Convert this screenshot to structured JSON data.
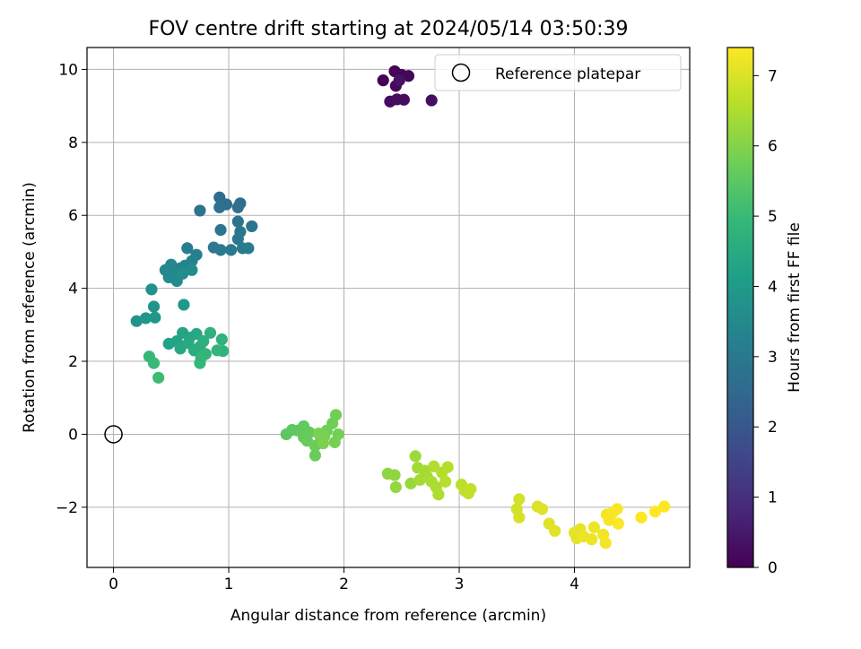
{
  "chart_data": {
    "type": "scatter",
    "title": "FOV centre drift starting at 2024/05/14 03:50:39",
    "xlabel": "Angular distance from reference (arcmin)",
    "ylabel": "Rotation from reference (arcmin)",
    "xlim": [
      -0.23,
      5.0
    ],
    "ylim": [
      -3.65,
      10.6
    ],
    "xticks": [
      0,
      1,
      2,
      3,
      4
    ],
    "xtick_labels": [
      "0",
      "1",
      "2",
      "3",
      "4"
    ],
    "yticks": [
      -2,
      0,
      2,
      4,
      6,
      8,
      10
    ],
    "ytick_labels": [
      "−2",
      "0",
      "2",
      "4",
      "6",
      "8",
      "10"
    ],
    "grid": true,
    "legend": {
      "position": "top-right",
      "entries": [
        "Reference platepar"
      ]
    },
    "colorbar": {
      "label": "Hours from first FF file",
      "colormap": "viridis",
      "range": [
        0,
        7.4
      ],
      "ticks": [
        0,
        1,
        2,
        3,
        4,
        5,
        6,
        7
      ],
      "tick_labels": [
        "0",
        "1",
        "2",
        "3",
        "4",
        "5",
        "6",
        "7"
      ]
    },
    "reference_point": {
      "x": 0,
      "y": 0,
      "label": "Reference platepar"
    },
    "series": [
      {
        "points": [
          [
            2.34,
            9.7,
            0.0
          ],
          [
            2.44,
            9.95,
            0.05
          ],
          [
            2.5,
            9.85,
            0.1
          ],
          [
            2.56,
            9.82,
            0.12
          ],
          [
            2.45,
            9.55,
            0.15
          ],
          [
            2.4,
            9.12,
            0.2
          ],
          [
            2.46,
            9.18,
            0.22
          ],
          [
            2.52,
            9.17,
            0.25
          ],
          [
            2.76,
            9.15,
            0.3
          ],
          [
            2.48,
            9.7,
            0.35
          ],
          [
            0.92,
            6.49,
            2.6
          ],
          [
            0.98,
            6.3,
            2.65
          ],
          [
            1.1,
            6.33,
            2.7
          ],
          [
            1.08,
            6.22,
            2.72
          ],
          [
            0.92,
            6.22,
            2.75
          ],
          [
            0.75,
            6.13,
            2.8
          ],
          [
            1.08,
            5.83,
            2.85
          ],
          [
            1.2,
            5.7,
            2.88
          ],
          [
            0.93,
            5.6,
            2.9
          ],
          [
            1.1,
            5.55,
            2.92
          ],
          [
            1.08,
            5.35,
            2.95
          ],
          [
            0.87,
            5.12,
            3.0
          ],
          [
            0.93,
            5.05,
            3.02
          ],
          [
            1.02,
            5.05,
            3.05
          ],
          [
            1.12,
            5.1,
            3.08
          ],
          [
            1.17,
            5.1,
            3.1
          ],
          [
            0.64,
            5.1,
            3.15
          ],
          [
            0.72,
            4.92,
            3.2
          ],
          [
            0.68,
            4.75,
            3.25
          ],
          [
            0.62,
            4.62,
            3.3
          ],
          [
            0.58,
            4.55,
            3.35
          ],
          [
            0.5,
            4.65,
            3.4
          ],
          [
            0.45,
            4.5,
            3.45
          ],
          [
            0.52,
            4.4,
            3.5
          ],
          [
            0.48,
            4.3,
            3.52
          ],
          [
            0.55,
            4.2,
            3.55
          ],
          [
            0.68,
            4.5,
            3.6
          ],
          [
            0.6,
            4.4,
            3.62
          ],
          [
            0.33,
            3.97,
            3.7
          ],
          [
            0.2,
            3.1,
            3.8
          ],
          [
            0.35,
            3.5,
            3.85
          ],
          [
            0.28,
            3.18,
            3.9
          ],
          [
            0.36,
            3.2,
            3.92
          ],
          [
            0.61,
            3.55,
            3.95
          ],
          [
            0.48,
            2.48,
            4.2
          ],
          [
            0.55,
            2.55,
            4.25
          ],
          [
            0.6,
            2.78,
            4.3
          ],
          [
            0.66,
            2.65,
            4.35
          ],
          [
            0.72,
            2.75,
            4.4
          ],
          [
            0.58,
            2.35,
            4.45
          ],
          [
            0.65,
            2.5,
            4.5
          ],
          [
            0.7,
            2.3,
            4.55
          ],
          [
            0.75,
            2.4,
            4.6
          ],
          [
            0.78,
            2.55,
            4.65
          ],
          [
            0.84,
            2.78,
            4.7
          ],
          [
            0.94,
            2.6,
            4.75
          ],
          [
            0.95,
            2.28,
            4.8
          ],
          [
            0.9,
            2.3,
            4.82
          ],
          [
            0.8,
            2.2,
            4.85
          ],
          [
            0.76,
            2.1,
            4.88
          ],
          [
            0.75,
            1.95,
            4.9
          ],
          [
            0.31,
            2.13,
            4.95
          ],
          [
            0.35,
            1.95,
            5.0
          ],
          [
            0.39,
            1.55,
            5.05
          ],
          [
            1.5,
            0.0,
            5.5
          ],
          [
            1.55,
            0.12,
            5.52
          ],
          [
            1.6,
            0.1,
            5.55
          ],
          [
            1.65,
            0.22,
            5.58
          ],
          [
            1.7,
            0.05,
            5.6
          ],
          [
            1.65,
            -0.08,
            5.62
          ],
          [
            1.68,
            -0.18,
            5.65
          ],
          [
            1.75,
            -0.32,
            5.68
          ],
          [
            1.75,
            -0.58,
            5.7
          ],
          [
            1.8,
            -0.15,
            5.72
          ],
          [
            1.85,
            0.1,
            5.75
          ],
          [
            1.9,
            0.3,
            5.78
          ],
          [
            1.93,
            0.53,
            5.8
          ],
          [
            1.95,
            0.0,
            5.82
          ],
          [
            1.92,
            -0.22,
            5.85
          ],
          [
            1.83,
            -0.05,
            5.88
          ],
          [
            1.78,
            0.02,
            5.9
          ],
          [
            1.82,
            -0.25,
            5.92
          ],
          [
            2.38,
            -1.08,
            6.1
          ],
          [
            2.44,
            -1.12,
            6.15
          ],
          [
            2.45,
            -1.45,
            6.2
          ],
          [
            2.58,
            -1.35,
            6.25
          ],
          [
            2.62,
            -0.6,
            6.3
          ],
          [
            2.64,
            -0.92,
            6.35
          ],
          [
            2.7,
            -1.0,
            6.38
          ],
          [
            2.66,
            -1.25,
            6.4
          ],
          [
            2.72,
            -1.15,
            6.42
          ],
          [
            2.76,
            -1.3,
            6.45
          ],
          [
            2.8,
            -1.45,
            6.48
          ],
          [
            2.82,
            -1.65,
            6.5
          ],
          [
            2.78,
            -0.88,
            6.52
          ],
          [
            2.85,
            -1.05,
            6.55
          ],
          [
            2.9,
            -0.9,
            6.58
          ],
          [
            2.88,
            -1.3,
            6.6
          ],
          [
            3.02,
            -1.38,
            6.65
          ],
          [
            3.05,
            -1.55,
            6.7
          ],
          [
            3.08,
            -1.62,
            6.72
          ],
          [
            3.1,
            -1.5,
            6.75
          ],
          [
            3.5,
            -2.05,
            6.9
          ],
          [
            3.52,
            -1.78,
            6.92
          ],
          [
            3.52,
            -2.28,
            6.95
          ],
          [
            3.68,
            -1.98,
            7.0
          ],
          [
            3.72,
            -2.05,
            7.02
          ],
          [
            3.78,
            -2.45,
            7.05
          ],
          [
            3.83,
            -2.65,
            7.08
          ],
          [
            4.0,
            -2.7,
            7.1
          ],
          [
            4.02,
            -2.85,
            7.12
          ],
          [
            4.05,
            -2.6,
            7.15
          ],
          [
            4.08,
            -2.8,
            7.18
          ],
          [
            4.15,
            -2.88,
            7.2
          ],
          [
            4.17,
            -2.55,
            7.22
          ],
          [
            4.25,
            -2.75,
            7.25
          ],
          [
            4.28,
            -2.2,
            7.28
          ],
          [
            4.27,
            -2.98,
            7.3
          ],
          [
            4.3,
            -2.35,
            7.32
          ],
          [
            4.33,
            -2.15,
            7.34
          ],
          [
            4.37,
            -2.05,
            7.36
          ],
          [
            4.38,
            -2.45,
            7.38
          ],
          [
            4.58,
            -2.28,
            7.39
          ],
          [
            4.7,
            -2.12,
            7.4
          ],
          [
            4.78,
            -1.98,
            7.4
          ]
        ]
      }
    ]
  }
}
